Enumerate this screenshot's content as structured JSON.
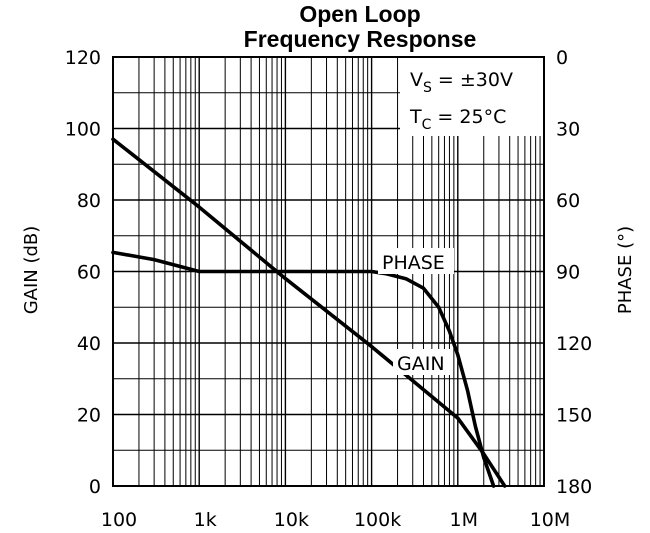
{
  "chart_data": {
    "type": "line",
    "title_line1": "Open Loop",
    "title_line2": "Frequency Response",
    "ylabel": "GAIN (dB)",
    "y2label": "PHASE (°)",
    "xscale": "log",
    "xlim": [
      100,
      10000000
    ],
    "ylim": [
      0,
      120
    ],
    "y2lim": [
      0,
      180
    ],
    "y2_inverted": true,
    "grid": true,
    "x_ticks": [
      100,
      1000,
      10000,
      100000,
      1000000,
      10000000
    ],
    "x_tick_labels": [
      "100",
      "1k",
      "10k",
      "100k",
      "1M",
      "10M"
    ],
    "y_ticks": [
      0,
      20,
      40,
      60,
      80,
      100,
      120
    ],
    "y_tick_labels": [
      "0",
      "20",
      "40",
      "60",
      "80",
      "100",
      "120"
    ],
    "y2_ticks": [
      0,
      30,
      60,
      90,
      120,
      150,
      180
    ],
    "y2_tick_labels": [
      "0",
      "30",
      "60",
      "90",
      "120",
      "150",
      "180"
    ],
    "conditions": {
      "vs_main": "V",
      "vs_sub": "S",
      "vs_value": " = ±30V",
      "tc_main": "T",
      "tc_sub": "C",
      "tc_value": " = 25°C"
    },
    "series": [
      {
        "name": "GAIN",
        "axis": "left",
        "x": [
          100,
          1000,
          10000,
          100000,
          1000000,
          2000000,
          3500000
        ],
        "y": [
          97,
          78,
          58,
          39,
          19,
          9,
          0
        ]
      },
      {
        "name": "PHASE",
        "axis": "right",
        "x": [
          100,
          300,
          1000,
          3000,
          10000,
          50000,
          100000,
          150000,
          250000,
          400000,
          600000,
          800000,
          1000000,
          1300000,
          1600000,
          2000000,
          2600000
        ],
        "y": [
          82,
          85,
          90,
          90,
          90,
          90,
          90,
          91,
          93,
          97,
          105,
          115,
          125,
          140,
          155,
          168,
          180
        ]
      }
    ]
  }
}
